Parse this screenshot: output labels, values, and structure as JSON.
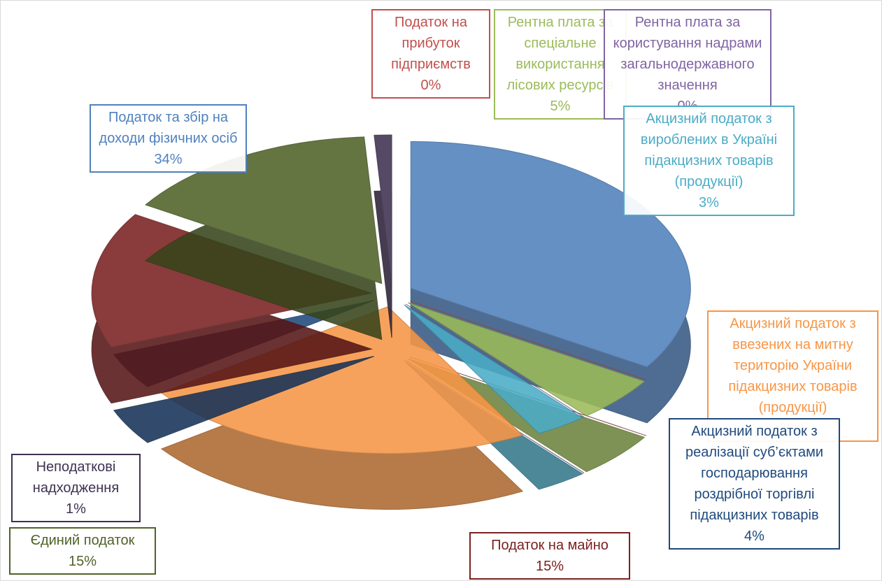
{
  "chart_data": {
    "type": "pie",
    "categories": [
      "Податок та збір на доходи фізичних осіб",
      "Податок на прибуток підприємств",
      "Рентна плата за спеціальне використання лісових ресурсів",
      "Рентна плата за користування надрами загальнодержавного значення",
      "Акцизний податок з вироблених в Україні підакцизних товарів (продукції)",
      "Акцизний податок з ввезених на митну територію України підакцизних товарів (продукції)",
      "Акцизний податок з реалізації суб’єктами господарювання роздрібної торгівлі підакцизних товарів",
      "Податок на майно",
      "Єдиний податок",
      "Неподаткові надходження"
    ],
    "values": [
      34,
      0,
      5,
      0,
      3,
      23,
      4,
      15,
      15,
      1
    ],
    "value_labels": [
      "34%",
      "0%",
      "5%",
      "0%",
      "3%",
      "23%",
      "4%",
      "15%",
      "15%",
      "1%"
    ],
    "colors": [
      "#4f81bd",
      "#c0504d",
      "#9bbb59",
      "#8064a2",
      "#4bacc6",
      "#f79646",
      "#1f497d",
      "#7b2020",
      "#4f6228",
      "#3f3151"
    ]
  }
}
